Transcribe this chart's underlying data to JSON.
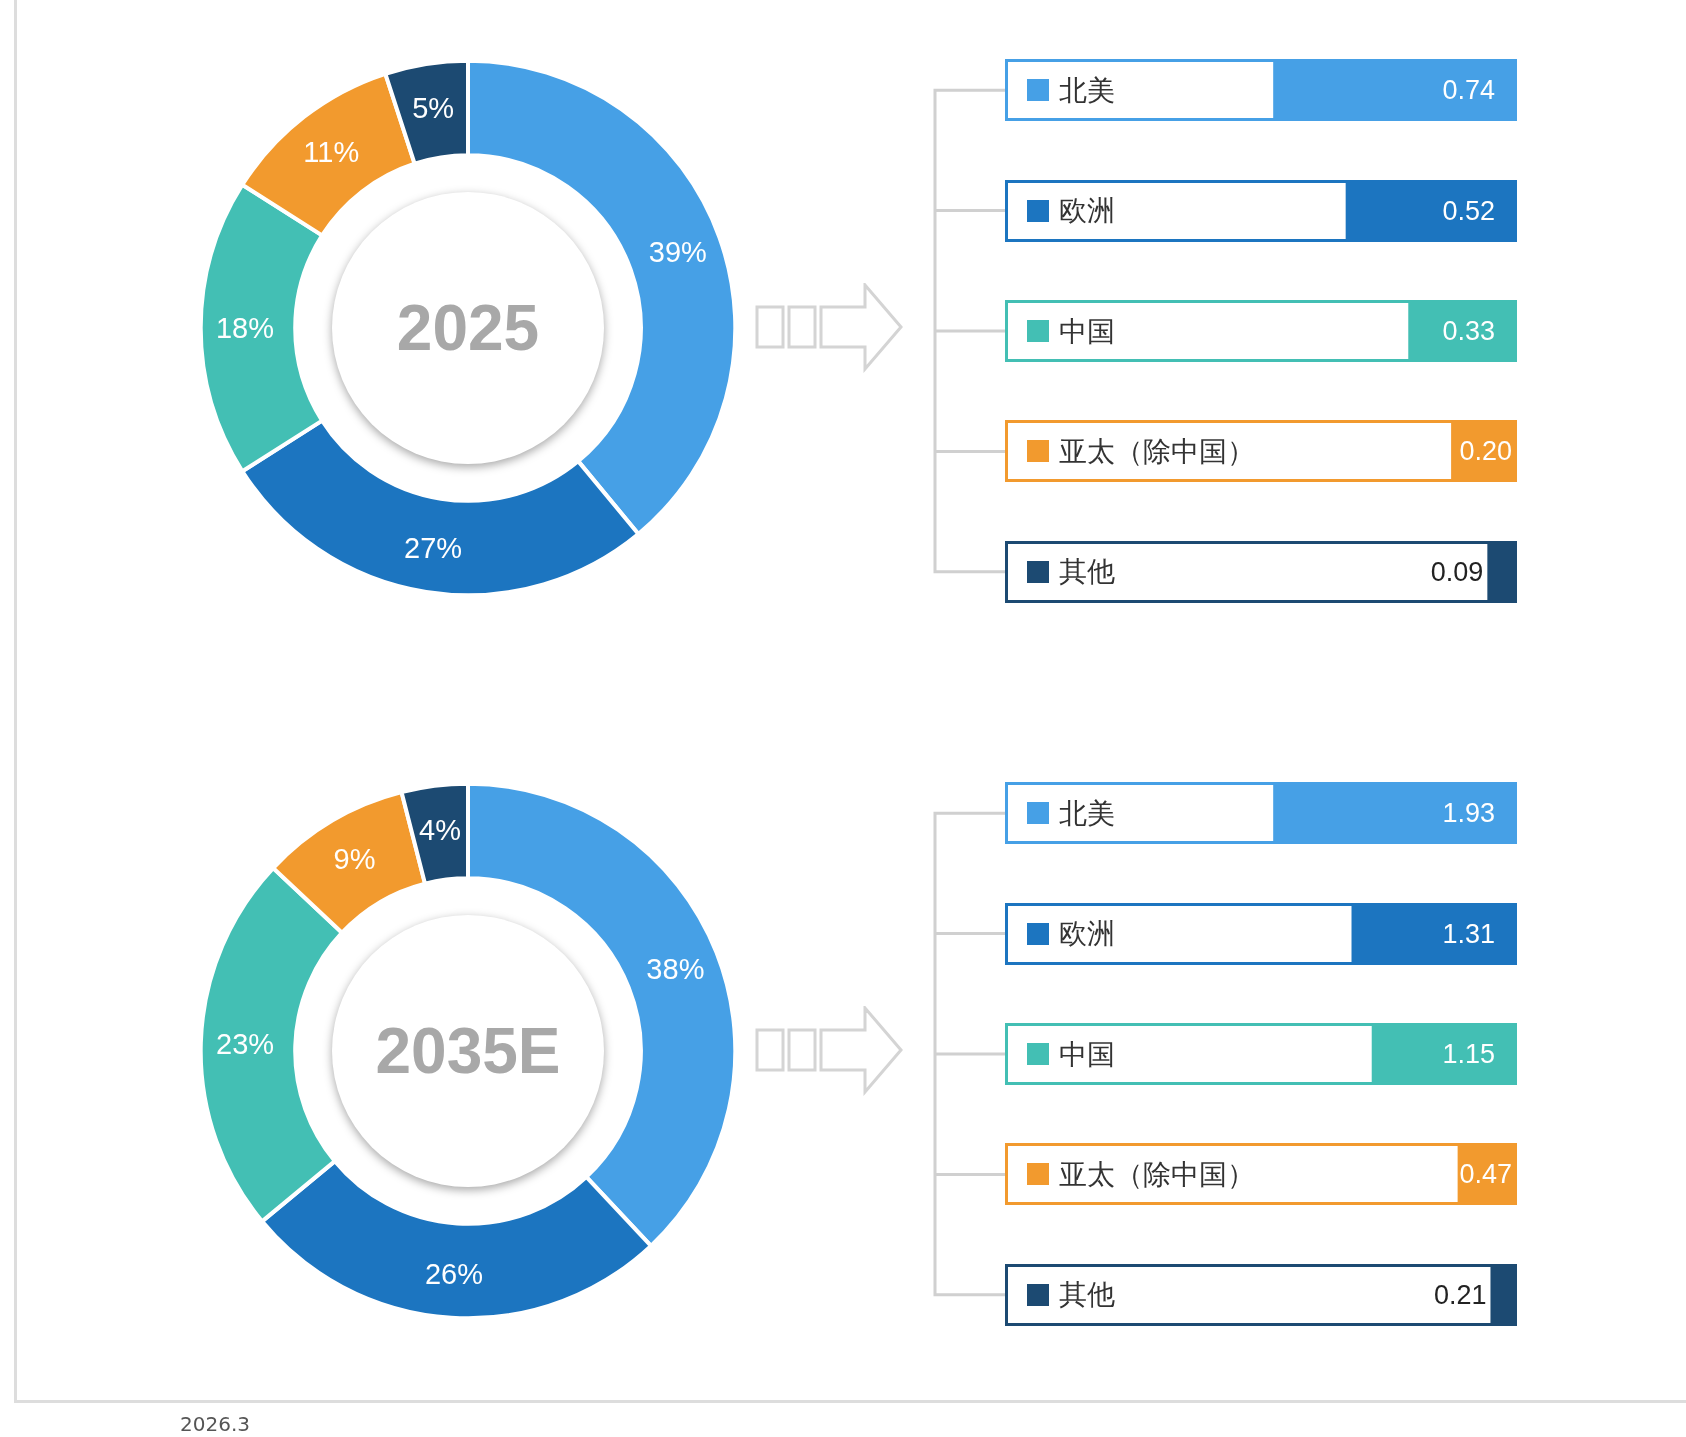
{
  "chart_data": [
    {
      "type": "donut",
      "title": "2025",
      "categories": [
        null,
        null,
        null,
        null,
        null
      ],
      "values": [
        39,
        27,
        18,
        11,
        5
      ],
      "value_labels": [
        "39%",
        "27%",
        "18%",
        "11%",
        "5%"
      ],
      "colors": [
        "#46a0e6",
        "#1c75c0",
        "#43bfb4",
        "#f29a2e",
        "#1c4a72"
      ]
    },
    {
      "type": "bar",
      "orientation": "horizontal",
      "categories": [
        "北美",
        "欧洲",
        "中国",
        "亚太（除中国）",
        "其他"
      ],
      "values": [
        0.74,
        0.52,
        0.33,
        0.2,
        0.09
      ],
      "value_labels": [
        "0.74",
        "0.52",
        "0.33",
        "0.20",
        "0.09"
      ],
      "colors": [
        "#46a0e6",
        "#1c75c0",
        "#43bfb4",
        "#f29a2e",
        "#1c4a72"
      ]
    },
    {
      "type": "donut",
      "title": "2035E",
      "categories": [
        null,
        null,
        null,
        null,
        null
      ],
      "values": [
        38,
        26,
        23,
        9,
        4
      ],
      "value_labels": [
        "38%",
        "26%",
        "23%",
        "9%",
        "4%"
      ],
      "colors": [
        "#46a0e6",
        "#1c75c0",
        "#43bfb4",
        "#f29a2e",
        "#1c4a72"
      ]
    },
    {
      "type": "bar",
      "orientation": "horizontal",
      "categories": [
        "北美",
        "欧洲",
        "中国",
        "亚太（除中国）",
        "其他"
      ],
      "values": [
        1.93,
        1.31,
        1.15,
        0.47,
        0.21
      ],
      "value_labels": [
        "1.93",
        "1.31",
        "1.15",
        "0.47",
        "0.21"
      ],
      "colors": [
        "#46a0e6",
        "#1c75c0",
        "#43bfb4",
        "#f29a2e",
        "#1c4a72"
      ],
      "annotations": [
        "2026.3"
      ]
    }
  ]
}
